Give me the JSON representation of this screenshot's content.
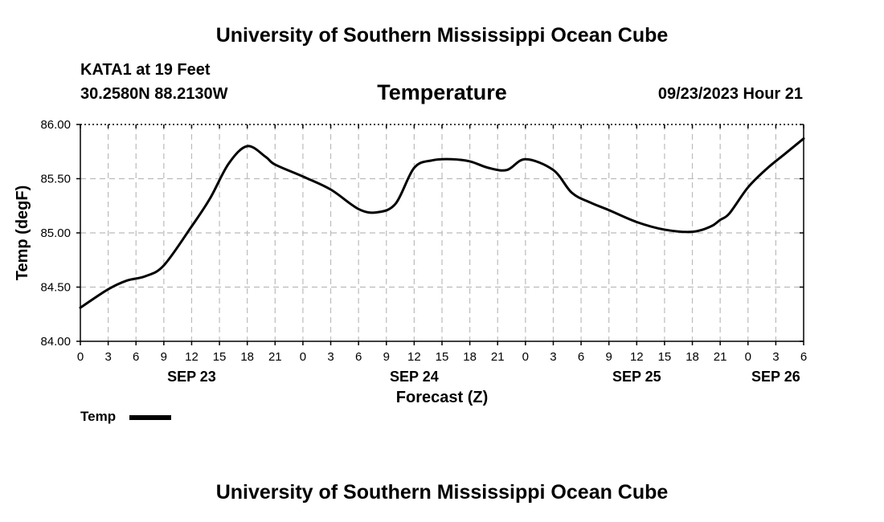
{
  "header": {
    "title": "University of Southern Mississippi Ocean Cube",
    "station": "KATA1 at 19 Feet",
    "coordinates": "30.2580N  88.2130W",
    "run_time": "09/23/2023 Hour 21"
  },
  "footer": {
    "title": "University of Southern Mississippi Ocean Cube"
  },
  "legend": {
    "label": "Temp",
    "color": "#000000"
  },
  "chart_data": {
    "type": "line",
    "title": "Temperature",
    "xlabel": "Forecast (Z)",
    "ylabel": "Temp (degF)",
    "ylim": [
      84.0,
      86.0
    ],
    "xlim": [
      0,
      78
    ],
    "y_ticks": [
      84.0,
      84.5,
      85.0,
      85.5,
      86.0
    ],
    "y_tick_labels": [
      "84.00",
      "84.50",
      "85.00",
      "85.50",
      "86.00"
    ],
    "x_ticks": [
      0,
      3,
      6,
      9,
      12,
      15,
      18,
      21,
      24,
      27,
      30,
      33,
      36,
      39,
      42,
      45,
      48,
      51,
      54,
      57,
      60,
      63,
      66,
      69,
      72,
      75,
      78
    ],
    "x_tick_labels": [
      "0",
      "3",
      "6",
      "9",
      "12",
      "15",
      "18",
      "21",
      "0",
      "3",
      "6",
      "9",
      "12",
      "15",
      "18",
      "21",
      "0",
      "3",
      "6",
      "9",
      "12",
      "15",
      "18",
      "21",
      "0",
      "3",
      "6"
    ],
    "date_labels": [
      {
        "x": 12,
        "label": "SEP 23"
      },
      {
        "x": 36,
        "label": "SEP 24"
      },
      {
        "x": 60,
        "label": "SEP 25"
      },
      {
        "x": 75,
        "label": "SEP 26"
      }
    ],
    "grid": true,
    "series": [
      {
        "name": "Temp",
        "color": "#000000",
        "x": [
          0,
          3,
          5,
          7,
          9,
          12,
          14,
          16,
          18,
          20,
          21,
          24,
          27,
          30,
          32,
          34,
          36,
          38,
          40,
          42,
          44,
          46,
          48,
          51,
          53,
          55,
          57,
          60,
          63,
          66,
          68,
          69,
          70,
          72,
          74,
          76,
          78
        ],
        "y": [
          84.31,
          84.48,
          84.56,
          84.6,
          84.7,
          85.06,
          85.32,
          85.64,
          85.8,
          85.7,
          85.63,
          85.52,
          85.4,
          85.22,
          85.19,
          85.27,
          85.6,
          85.67,
          85.68,
          85.66,
          85.6,
          85.58,
          85.68,
          85.58,
          85.37,
          85.28,
          85.21,
          85.1,
          85.03,
          85.01,
          85.06,
          85.12,
          85.18,
          85.42,
          85.59,
          85.73,
          85.87
        ]
      }
    ]
  }
}
